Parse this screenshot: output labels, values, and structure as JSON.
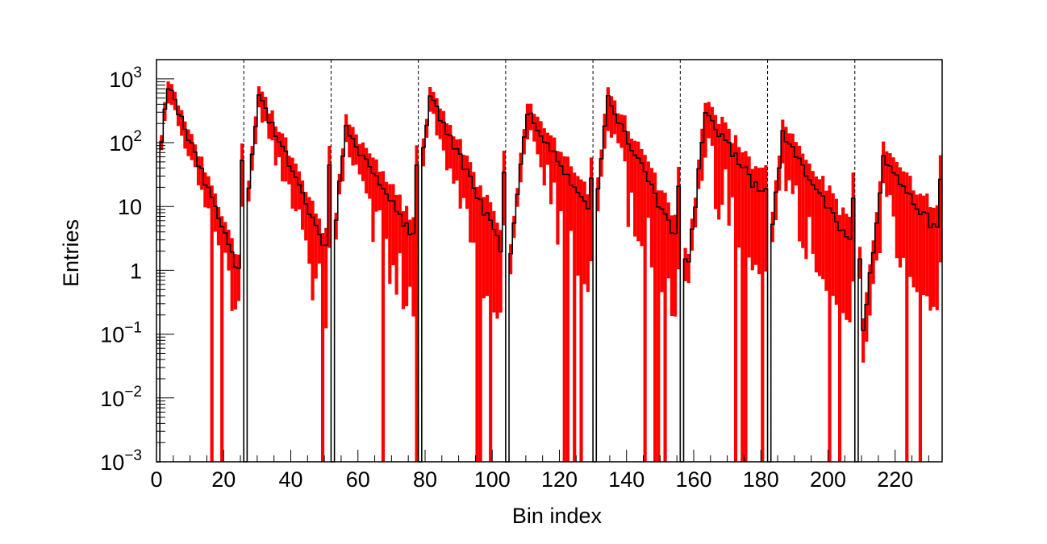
{
  "chart_data": {
    "type": "bar",
    "title": "",
    "xlabel": "Bin index",
    "ylabel": "Entries",
    "xlim": [
      0,
      234
    ],
    "ylim": [
      0.001,
      2000
    ],
    "yscale": "log",
    "grid": false,
    "legend": "none",
    "colors": {
      "band": "#ff0000",
      "line": "#000000"
    },
    "xticks": [
      {
        "value": 0,
        "label": "0"
      },
      {
        "value": 20,
        "label": "20"
      },
      {
        "value": 40,
        "label": "40"
      },
      {
        "value": 60,
        "label": "60"
      },
      {
        "value": 80,
        "label": "80"
      },
      {
        "value": 100,
        "label": "100"
      },
      {
        "value": 120,
        "label": "120"
      },
      {
        "value": 140,
        "label": "140"
      },
      {
        "value": 160,
        "label": "160"
      },
      {
        "value": 180,
        "label": "180"
      },
      {
        "value": 200,
        "label": "200"
      },
      {
        "value": 220,
        "label": "220"
      }
    ],
    "yticks": [
      {
        "value": 0.001,
        "base": "10",
        "exp": "−3"
      },
      {
        "value": 0.01,
        "base": "10",
        "exp": "−2"
      },
      {
        "value": 0.1,
        "base": "10",
        "exp": "−1"
      },
      {
        "value": 1,
        "base": "1",
        "exp": ""
      },
      {
        "value": 10,
        "base": "10",
        "exp": ""
      },
      {
        "value": 100,
        "base": "10",
        "exp": "2"
      },
      {
        "value": 1000,
        "base": "10",
        "exp": "3"
      }
    ],
    "separators": [
      26,
      52,
      78,
      104,
      130,
      156,
      182,
      208
    ],
    "segments": [
      {
        "start": 0,
        "length": 26,
        "peak": 800,
        "peak_bin": 3,
        "fall": 0.138,
        "edge": 60,
        "band": 0.25
      },
      {
        "start": 26,
        "length": 26,
        "peak": 560,
        "peak_bin": 4,
        "fall": 0.12,
        "edge": 50,
        "band": 0.3
      },
      {
        "start": 52,
        "length": 26,
        "peak": 170,
        "peak_bin": 4,
        "fall": 0.085,
        "edge": 40,
        "band": 0.35
      },
      {
        "start": 78,
        "length": 26,
        "peak": 600,
        "peak_bin": 3,
        "fall": 0.115,
        "edge": 35,
        "band": 0.35
      },
      {
        "start": 104,
        "length": 26,
        "peak": 330,
        "peak_bin": 6,
        "fall": 0.085,
        "edge": 30,
        "band": 0.35
      },
      {
        "start": 130,
        "length": 26,
        "peak": 460,
        "peak_bin": 4,
        "fall": 0.105,
        "edge": 25,
        "band": 0.4
      },
      {
        "start": 156,
        "length": 26,
        "peak": 280,
        "peak_bin": 7,
        "fall": 0.075,
        "edge": 18,
        "band": 0.4
      },
      {
        "start": 182,
        "length": 26,
        "peak": 130,
        "peak_bin": 4,
        "fall": 0.085,
        "edge": 15,
        "band": 0.45
      },
      {
        "start": 208,
        "length": 26,
        "peak": 55,
        "peak_bin": 8,
        "fall": 0.07,
        "edge": 25,
        "band": 0.45
      }
    ]
  }
}
